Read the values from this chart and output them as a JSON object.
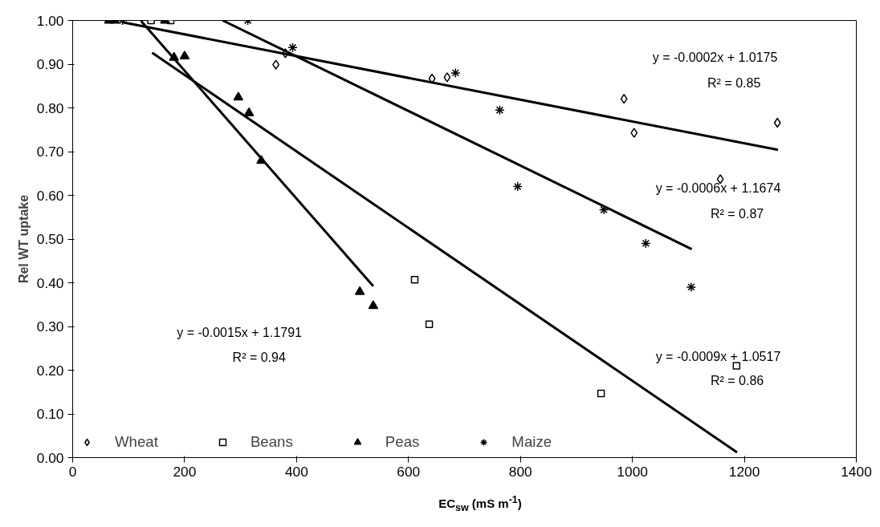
{
  "chart_data": {
    "type": "scatter",
    "xlabel": "EC$_{sw}$ (mS m$^{-1}$)",
    "ylabel": "Rel WT uptake",
    "xlim": [
      0,
      1400
    ],
    "xticks": [
      0,
      200,
      400,
      600,
      800,
      1000,
      1200,
      1400
    ],
    "ylim": [
      0,
      1
    ],
    "yticks": [
      {
        "value": 0,
        "label": "0.00"
      },
      {
        "value": 0.1,
        "label": "0.10"
      },
      {
        "value": 0.2,
        "label": "0.20"
      },
      {
        "value": 0.3,
        "label": "0.30"
      },
      {
        "value": 0.4,
        "label": "0.40"
      },
      {
        "value": 0.5,
        "label": "0.50"
      },
      {
        "value": 0.6,
        "label": "0.60"
      },
      {
        "value": 0.7,
        "label": "0.70"
      },
      {
        "value": 0.8,
        "label": "0.80"
      },
      {
        "value": 0.9,
        "label": "0.90"
      },
      {
        "value": 1,
        "label": "1.00"
      }
    ],
    "grid": false,
    "legend": "bottom",
    "series": [
      {
        "name": "Wheat",
        "color": "#000000",
        "marker": "diamond",
        "x": [
          363,
          380,
          642,
          669,
          985,
          1003,
          1157,
          1259
        ],
        "values": [
          0.899,
          0.925,
          0.867,
          0.87,
          0.821,
          0.743,
          0.637,
          0.766
        ]
      },
      {
        "name": "Beans",
        "color": "#000000",
        "marker": "square",
        "x": [
          140,
          175,
          611,
          637,
          944,
          1186
        ],
        "values": [
          1.0,
          1.0,
          0.407,
          0.305,
          0.147,
          0.21
        ]
      },
      {
        "name": "Peas",
        "color": "#000000",
        "marker": "triangle",
        "x": [
          65,
          75,
          165,
          181,
          200,
          296,
          315,
          337,
          513,
          537
        ],
        "values": [
          1.0,
          1.0,
          1.0,
          0.915,
          0.918,
          0.824,
          0.788,
          0.679,
          0.379,
          0.347
        ]
      },
      {
        "name": "Maize",
        "color": "#000000",
        "marker": "cross",
        "x": [
          89,
          313,
          393,
          684,
          763,
          795,
          949,
          1024,
          1105
        ],
        "values": [
          1.0,
          1.0,
          0.938,
          0.88,
          0.795,
          0.62,
          0.567,
          0.49,
          0.39
        ]
      },
      {
        "type": "line",
        "color": "#000000",
        "x": [
          89,
          1260
        ],
        "values": [
          0.996,
          0.704
        ]
      },
      {
        "type": "line",
        "color": "#000000",
        "x": [
          268,
          1106
        ],
        "values": [
          1.0,
          0.477
        ]
      },
      {
        "type": "line",
        "color": "#000000",
        "x": [
          122,
          537
        ],
        "values": [
          0.999,
          0.392
        ]
      },
      {
        "type": "line",
        "color": "#000000",
        "x": [
          142,
          1187
        ],
        "values": [
          0.926,
          0.012
        ]
      }
    ],
    "annotations": [
      "y = -0.0002x + 1.0175",
      "R² = 0.85",
      "y = -0.0006x + 1.1674",
      "R² = 0.87",
      "y = -0.0015x + 1.1791",
      "R² = 0.94",
      "y = -0.0009x + 1.0517",
      "R² = 0.86"
    ]
  }
}
